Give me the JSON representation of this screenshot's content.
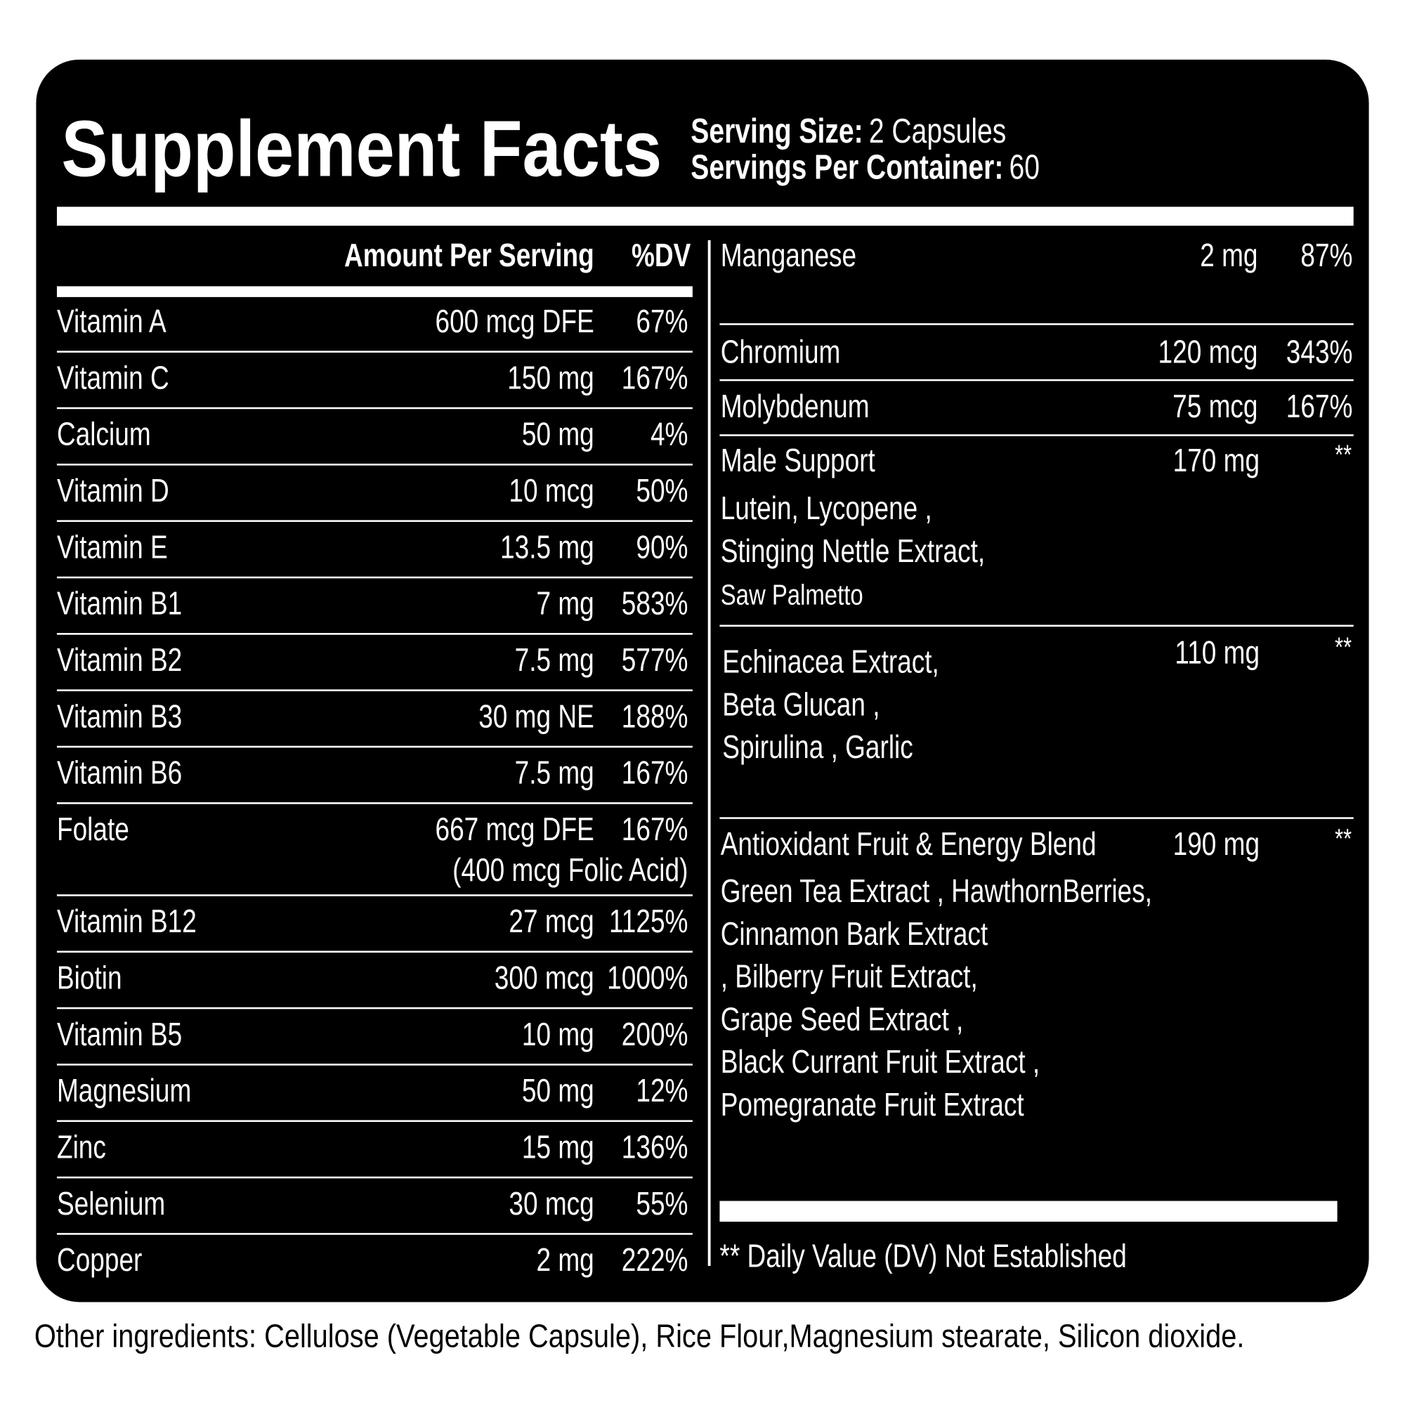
{
  "header": {
    "title": "Supplement Facts",
    "serving_size_label": "Serving Size:",
    "serving_size": "2 Capsules",
    "servings_label": "Servings Per Container:",
    "servings": "60"
  },
  "table": {
    "columns": [
      "Amount Per Serving",
      "%DV"
    ],
    "left_rows": [
      [
        "Vitamin A",
        "600 mcg DFE",
        "67%"
      ],
      [
        "Vitamin C",
        "150 mg",
        "167%"
      ],
      [
        "Calcium",
        "50 mg",
        "4%"
      ],
      [
        "Vitamin D",
        "10 mcg",
        "50%"
      ],
      [
        "Vitamin E",
        "13.5 mg",
        "90%"
      ],
      [
        "Vitamin B1",
        "7 mg",
        "583%"
      ],
      [
        "Vitamin B2",
        "7.5 mg",
        "577%"
      ],
      [
        "Vitamin B3",
        "30 mg NE",
        "188%"
      ],
      [
        "Vitamin B6",
        "7.5 mg",
        "167%"
      ],
      [
        "Folate",
        "667 mcg DFE",
        "167%",
        "(400 mcg Folic Acid)"
      ],
      [
        "Vitamin B12",
        "27 mcg",
        "1125%"
      ],
      [
        "Biotin",
        "300 mcg",
        "1000%"
      ],
      [
        "Vitamin B5",
        "10 mg",
        "200%"
      ],
      [
        "Magnesium",
        "50 mg",
        "12%"
      ],
      [
        "Zinc",
        "15 mg",
        "136%"
      ],
      [
        "Selenium",
        "30 mcg",
        "55%"
      ],
      [
        "Copper",
        "2 mg",
        "222%"
      ]
    ],
    "right_rows": [
      [
        "Manganese",
        "2 mg",
        "87%"
      ],
      [
        "Chromium",
        "120 mcg",
        "343%"
      ],
      [
        "Molybdenum",
        "75 mcg",
        "167%"
      ]
    ],
    "blends": [
      {
        "name": "Male Support",
        "amount": "170 mg",
        "dv": "**",
        "ingredients": [
          "Lutein, Lycopene ,",
          "Stinging Nettle Extract,",
          "Saw Palmetto"
        ]
      },
      {
        "amount": "110 mg",
        "dv": "**",
        "ingredients": [
          "Echinacea Extract,",
          "Beta Glucan ,",
          "Spirulina , Garlic"
        ]
      },
      {
        "name": "Antioxidant Fruit & Energy Blend",
        "amount": "190 mg",
        "dv": "**",
        "ingredients": [
          "Green Tea Extract , HawthornBerries,",
          "Cinnamon Bark Extract",
          ", Bilberry Fruit Extract,",
          "Grape Seed Extract ,",
          "Black Currant Fruit Extract ,",
          "Pomegranate Fruit Extract"
        ]
      }
    ],
    "footnote": "** Daily Value (DV) Not Established"
  },
  "other_ingredients": "Other ingredients: Cellulose (Vegetable Capsule), Rice Flour,Magnesium stearate, Silicon dioxide."
}
